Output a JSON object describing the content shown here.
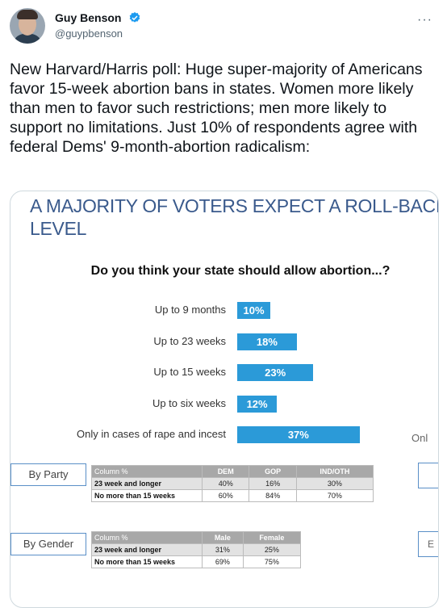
{
  "tweet": {
    "author_name": "Guy Benson",
    "handle": "@guypbenson",
    "more_icon": "···",
    "text": "New Harvard/Harris poll: Huge super-majority of Americans favor 15-week abortion bans in states. Women more likely than men to favor such restrictions; men more likely to support no limitations. Just 10% of respondents agree with federal Dems' 9-month-abortion radicalism:"
  },
  "slide": {
    "title_line1": "A MAJORITY OF VOTERS EXPECT A ROLL-BACI",
    "title_line2": "LEVEL",
    "question": "Do you think your state should allow abortion...?",
    "cut_label": "Onl",
    "by_party_label": "By Party",
    "by_gender_label": "By Gender",
    "right_box_gender_char": "E",
    "colors": {
      "bar": "#2b9ad8",
      "title": "#3a5a8c"
    }
  },
  "chart_data": {
    "type": "bar",
    "orientation": "horizontal",
    "categories": [
      "Up to 9 months",
      "Up to 23 weeks",
      "Up to 15 weeks",
      "Up to six weeks",
      "Only in cases of rape and incest"
    ],
    "values": [
      10,
      18,
      23,
      12,
      37
    ],
    "value_labels": [
      "10%",
      "18%",
      "23%",
      "12%",
      "37%"
    ],
    "title": "Do you think your state should allow abortion...?",
    "xlim": [
      0,
      40
    ]
  },
  "party_table": {
    "col_label": "Column %",
    "headers": [
      "DEM",
      "GOP",
      "IND/OTH"
    ],
    "rows": [
      {
        "label": "23 week and longer",
        "values": [
          "40%",
          "16%",
          "30%"
        ]
      },
      {
        "label": "No more than 15 weeks",
        "values": [
          "60%",
          "84%",
          "70%"
        ]
      }
    ]
  },
  "gender_table": {
    "col_label": "Column %",
    "headers": [
      "Male",
      "Female"
    ],
    "rows": [
      {
        "label": "23 week and longer",
        "values": [
          "31%",
          "25%"
        ]
      },
      {
        "label": "No more than 15 weeks",
        "values": [
          "69%",
          "75%"
        ]
      }
    ]
  }
}
